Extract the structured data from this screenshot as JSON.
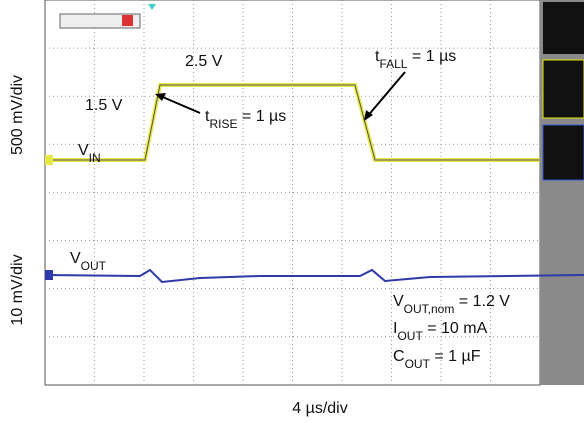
{
  "scope": {
    "labels": [
      {
        "main": "2.5 V"
      },
      {
        "main": "1.5 V"
      },
      {
        "main": "V",
        "sub": "IN"
      },
      {
        "main": "t",
        "sub": "RISE",
        "rest": " = 1 µs"
      },
      {
        "main": "t",
        "sub": "FALL",
        "rest": " = 1 µs"
      },
      {
        "main": "V",
        "sub": "OUT"
      },
      {
        "main": "V",
        "sub": "OUT,nom",
        "rest": " = 1.2 V"
      },
      {
        "main": "I",
        "sub": "OUT",
        "rest": " = 10 mA"
      },
      {
        "main": "C",
        "sub": "OUT",
        "rest": " = 1 µF"
      }
    ],
    "ch1_scale": "500 mV/div",
    "ch2_scale": "10 mV/div",
    "time_scale": "4 µs/div"
  }
}
